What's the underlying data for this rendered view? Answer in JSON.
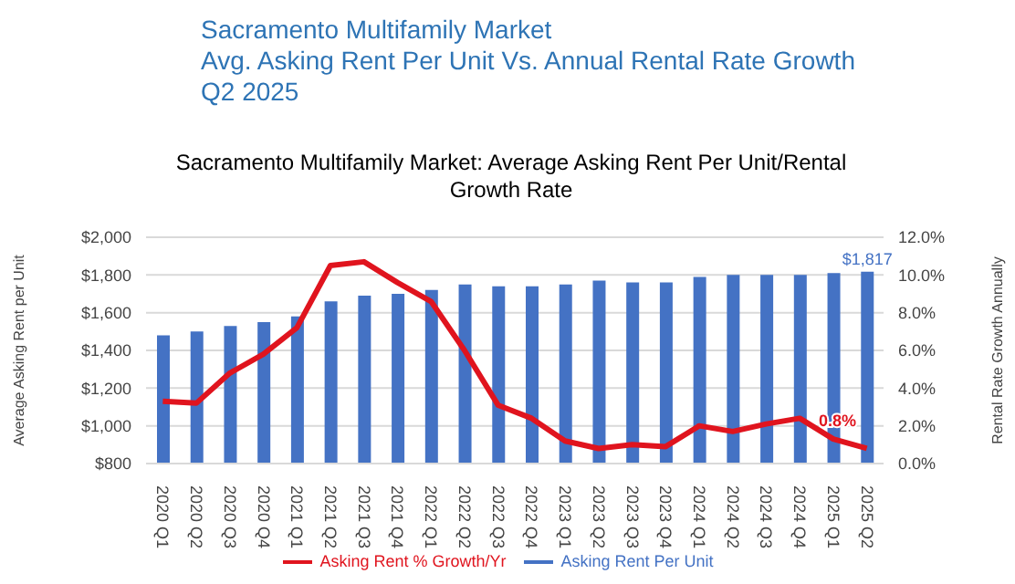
{
  "chart_data": {
    "type": "bar",
    "title": "Sacramento Multifamily Market: Average Asking Rent Per Unit/Rental Growth Rate",
    "subtitle": "Sacramento Multifamily Market\nAvg. Asking Rent Per Unit Vs. Annual Rental Rate Growth\nQ2 2025",
    "ylabel": "Average Asking Rent per Unit",
    "y2label": "Rental Rate Growth Annually",
    "categories": [
      "2020 Q1",
      "2020 Q2",
      "2020 Q3",
      "2020 Q4",
      "2021 Q1",
      "2021 Q2",
      "2021 Q3",
      "2021 Q4",
      "2022 Q1",
      "2022 Q2",
      "2022 Q3",
      "2022 Q4",
      "2023 Q1",
      "2023 Q2",
      "2023 Q3",
      "2023 Q4",
      "2024 Q1",
      "2024 Q2",
      "2024 Q3",
      "2024 Q4",
      "2025 Q1",
      "2025 Q2"
    ],
    "series": [
      {
        "name": "Asking Rent Per Unit",
        "color": "#4472c4",
        "values": [
          1480,
          1500,
          1530,
          1550,
          1580,
          1660,
          1690,
          1700,
          1720,
          1750,
          1740,
          1740,
          1750,
          1770,
          1760,
          1760,
          1790,
          1800,
          1800,
          1800,
          1810,
          1817
        ],
        "value_labels": [
          null,
          null,
          null,
          null,
          null,
          null,
          null,
          null,
          null,
          null,
          null,
          null,
          null,
          null,
          null,
          null,
          null,
          null,
          null,
          null,
          null,
          "$1,817"
        ]
      },
      {
        "name": "Asking Rent % Growth/Yr",
        "type": "line",
        "axis": "y2",
        "color": "#e0141e",
        "values": [
          3.3,
          3.2,
          4.8,
          5.8,
          7.2,
          10.5,
          10.7,
          9.6,
          8.6,
          6.0,
          3.1,
          2.4,
          1.2,
          0.8,
          1.0,
          0.9,
          2.0,
          1.7,
          2.1,
          2.4,
          1.3,
          0.8
        ],
        "value_labels": [
          null,
          null,
          null,
          null,
          null,
          null,
          null,
          null,
          null,
          null,
          null,
          null,
          null,
          null,
          null,
          null,
          null,
          null,
          null,
          null,
          null,
          "0.8%"
        ]
      }
    ],
    "ylim": [
      800,
      2000
    ],
    "yticks": [
      {
        "value": 800,
        "label": "$800"
      },
      {
        "value": 1000,
        "label": "$1,000"
      },
      {
        "value": 1200,
        "label": "$1,200"
      },
      {
        "value": 1400,
        "label": "$1,400"
      },
      {
        "value": 1600,
        "label": "$1,600"
      },
      {
        "value": 1800,
        "label": "$1,800"
      },
      {
        "value": 2000,
        "label": "$2,000"
      }
    ],
    "y2lim": [
      0,
      12
    ],
    "y2ticks": [
      {
        "value": 0,
        "label": "0.0%"
      },
      {
        "value": 2,
        "label": "2.0%"
      },
      {
        "value": 4,
        "label": "4.0%"
      },
      {
        "value": 6,
        "label": "6.0%"
      },
      {
        "value": 8,
        "label": "8.0%"
      },
      {
        "value": 10,
        "label": "10.0%"
      },
      {
        "value": 12,
        "label": "12.0%"
      }
    ],
    "grid": "y",
    "legend": "bottom",
    "marker": "none",
    "line_style": "solid"
  }
}
